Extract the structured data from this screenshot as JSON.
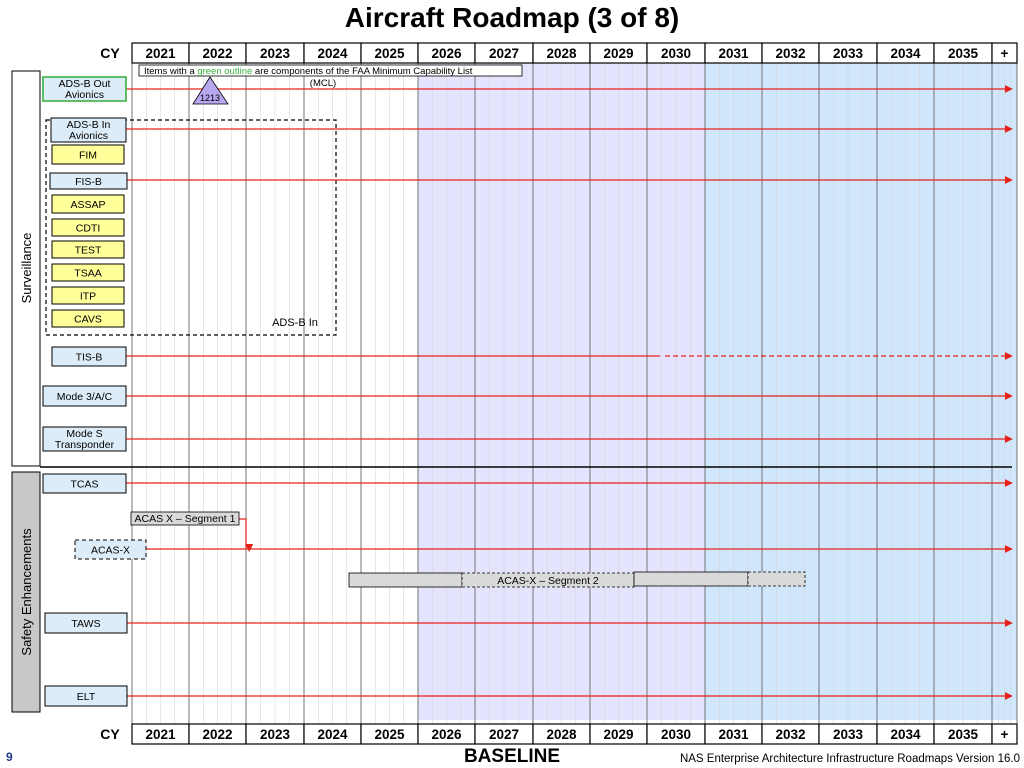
{
  "title": "Aircraft Roadmap (3 of 8)",
  "axis": {
    "label": "CY",
    "years": [
      "2021",
      "2022",
      "2023",
      "2024",
      "2025",
      "2026",
      "2027",
      "2028",
      "2029",
      "2030",
      "2031",
      "2032",
      "2033",
      "2034",
      "2035",
      "+"
    ]
  },
  "legend_note": {
    "before": "Items with a ",
    "highlight": "green outline",
    "after": " are components of the FAA Minimum Capability List",
    "line2": "(MCL)",
    "highlight_color": "#3cb043"
  },
  "groups": [
    {
      "name": "Surveillance"
    },
    {
      "name": "Safety Enhancements"
    }
  ],
  "programs": [
    {
      "id": "adsb-out",
      "line1": "ADS-B Out",
      "line2": "Avionics",
      "mcl": true
    },
    {
      "id": "adsb-in",
      "line1": "ADS-B In",
      "line2": "Avionics",
      "mcl": false
    },
    {
      "id": "fim",
      "line1": "FIM"
    },
    {
      "id": "fisb",
      "line1": "FIS-B"
    },
    {
      "id": "assap",
      "line1": "ASSAP"
    },
    {
      "id": "cdti",
      "line1": "CDTI"
    },
    {
      "id": "test",
      "line1": "TEST"
    },
    {
      "id": "tsaa",
      "line1": "TSAA"
    },
    {
      "id": "itp",
      "line1": "ITP"
    },
    {
      "id": "cavs",
      "line1": "CAVS"
    },
    {
      "id": "tisb",
      "line1": "TIS-B"
    },
    {
      "id": "mode3",
      "line1": "Mode 3/A/C"
    },
    {
      "id": "modes",
      "line1": "Mode S",
      "line2": "Transponder"
    },
    {
      "id": "tcas",
      "line1": "TCAS"
    },
    {
      "id": "acasx",
      "line1": "ACAS-X"
    },
    {
      "id": "taws",
      "line1": "TAWS"
    },
    {
      "id": "elt",
      "line1": "ELT"
    }
  ],
  "adsb_in_group_label": "ADS-B In",
  "milestone": {
    "label": "1213"
  },
  "segments": {
    "acas_seg1": "ACAS X – Segment 1",
    "acas_seg2": "ACAS-X – Segment 2"
  },
  "footer": {
    "page": "9",
    "baseline": "BASELINE",
    "version": "NAS Enterprise Architecture Infrastructure Roadmaps Version 16.0"
  },
  "colors": {
    "line": "#e8201a",
    "box_yellow": "#ffff99",
    "box_blue": "#dcecf8",
    "band_lavender": "#e4e4ff",
    "band_blue": "#cfe6fb",
    "milestone": "#b8a6ee",
    "gray_bar": "#d9d9d9"
  }
}
